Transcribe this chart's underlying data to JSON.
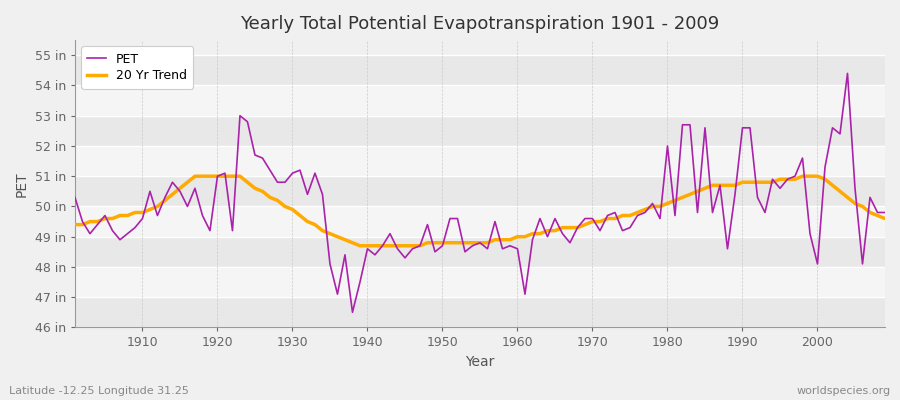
{
  "title": "Yearly Total Potential Evapotranspiration 1901 - 2009",
  "xlabel": "Year",
  "ylabel": "PET",
  "bg_color": "#f0f0f0",
  "plot_bg_color": "#f0f0f0",
  "grid_color": "#ffffff",
  "pet_color": "#aa22aa",
  "trend_color": "#ffaa00",
  "ylim": [
    46,
    55.5
  ],
  "xlim": [
    1901,
    2009
  ],
  "yticks": [
    46,
    47,
    48,
    49,
    50,
    51,
    52,
    53,
    54,
    55
  ],
  "xticks": [
    1910,
    1920,
    1930,
    1940,
    1950,
    1960,
    1970,
    1980,
    1990,
    2000
  ],
  "pet_data": [
    [
      1901,
      50.3
    ],
    [
      1902,
      49.5
    ],
    [
      1903,
      49.1
    ],
    [
      1904,
      49.4
    ],
    [
      1905,
      49.7
    ],
    [
      1906,
      49.2
    ],
    [
      1907,
      48.9
    ],
    [
      1908,
      49.1
    ],
    [
      1909,
      49.3
    ],
    [
      1910,
      49.6
    ],
    [
      1911,
      50.5
    ],
    [
      1912,
      49.7
    ],
    [
      1913,
      50.3
    ],
    [
      1914,
      50.8
    ],
    [
      1915,
      50.5
    ],
    [
      1916,
      50.0
    ],
    [
      1917,
      50.6
    ],
    [
      1918,
      49.7
    ],
    [
      1919,
      49.2
    ],
    [
      1920,
      51.0
    ],
    [
      1921,
      51.1
    ],
    [
      1922,
      49.2
    ],
    [
      1923,
      53.0
    ],
    [
      1924,
      52.8
    ],
    [
      1925,
      51.7
    ],
    [
      1926,
      51.6
    ],
    [
      1927,
      51.2
    ],
    [
      1928,
      50.8
    ],
    [
      1929,
      50.8
    ],
    [
      1930,
      51.1
    ],
    [
      1931,
      51.2
    ],
    [
      1932,
      50.4
    ],
    [
      1933,
      51.1
    ],
    [
      1934,
      50.4
    ],
    [
      1935,
      48.1
    ],
    [
      1936,
      47.1
    ],
    [
      1937,
      48.4
    ],
    [
      1938,
      46.5
    ],
    [
      1939,
      47.5
    ],
    [
      1940,
      48.6
    ],
    [
      1941,
      48.4
    ],
    [
      1942,
      48.7
    ],
    [
      1943,
      49.1
    ],
    [
      1944,
      48.6
    ],
    [
      1945,
      48.3
    ],
    [
      1946,
      48.6
    ],
    [
      1947,
      48.7
    ],
    [
      1948,
      49.4
    ],
    [
      1949,
      48.5
    ],
    [
      1950,
      48.7
    ],
    [
      1951,
      49.6
    ],
    [
      1952,
      49.6
    ],
    [
      1953,
      48.5
    ],
    [
      1954,
      48.7
    ],
    [
      1955,
      48.8
    ],
    [
      1956,
      48.6
    ],
    [
      1957,
      49.5
    ],
    [
      1958,
      48.6
    ],
    [
      1959,
      48.7
    ],
    [
      1960,
      48.6
    ],
    [
      1961,
      47.1
    ],
    [
      1962,
      48.9
    ],
    [
      1963,
      49.6
    ],
    [
      1964,
      49.0
    ],
    [
      1965,
      49.6
    ],
    [
      1966,
      49.1
    ],
    [
      1967,
      48.8
    ],
    [
      1968,
      49.3
    ],
    [
      1969,
      49.6
    ],
    [
      1970,
      49.6
    ],
    [
      1971,
      49.2
    ],
    [
      1972,
      49.7
    ],
    [
      1973,
      49.8
    ],
    [
      1974,
      49.2
    ],
    [
      1975,
      49.3
    ],
    [
      1976,
      49.7
    ],
    [
      1977,
      49.8
    ],
    [
      1978,
      50.1
    ],
    [
      1979,
      49.6
    ],
    [
      1980,
      52.0
    ],
    [
      1981,
      49.7
    ],
    [
      1982,
      52.7
    ],
    [
      1983,
      52.7
    ],
    [
      1984,
      49.8
    ],
    [
      1985,
      52.6
    ],
    [
      1986,
      49.8
    ],
    [
      1987,
      50.7
    ],
    [
      1988,
      48.6
    ],
    [
      1989,
      50.4
    ],
    [
      1990,
      52.6
    ],
    [
      1991,
      52.6
    ],
    [
      1992,
      50.3
    ],
    [
      1993,
      49.8
    ],
    [
      1994,
      50.9
    ],
    [
      1995,
      50.6
    ],
    [
      1996,
      50.9
    ],
    [
      1997,
      51.0
    ],
    [
      1998,
      51.6
    ],
    [
      1999,
      49.1
    ],
    [
      2000,
      48.1
    ],
    [
      2001,
      51.3
    ],
    [
      2002,
      52.6
    ],
    [
      2003,
      52.4
    ],
    [
      2004,
      54.4
    ],
    [
      2005,
      50.6
    ],
    [
      2006,
      48.1
    ],
    [
      2007,
      50.3
    ],
    [
      2008,
      49.8
    ],
    [
      2009,
      49.8
    ]
  ],
  "trend_data": [
    [
      1901,
      49.4
    ],
    [
      1902,
      49.4
    ],
    [
      1903,
      49.5
    ],
    [
      1904,
      49.5
    ],
    [
      1905,
      49.6
    ],
    [
      1906,
      49.6
    ],
    [
      1907,
      49.7
    ],
    [
      1908,
      49.7
    ],
    [
      1909,
      49.8
    ],
    [
      1910,
      49.8
    ],
    [
      1911,
      49.9
    ],
    [
      1912,
      50.0
    ],
    [
      1913,
      50.2
    ],
    [
      1914,
      50.4
    ],
    [
      1915,
      50.6
    ],
    [
      1916,
      50.8
    ],
    [
      1917,
      51.0
    ],
    [
      1918,
      51.0
    ],
    [
      1919,
      51.0
    ],
    [
      1920,
      51.0
    ],
    [
      1921,
      51.0
    ],
    [
      1922,
      51.0
    ],
    [
      1923,
      51.0
    ],
    [
      1924,
      50.8
    ],
    [
      1925,
      50.6
    ],
    [
      1926,
      50.5
    ],
    [
      1927,
      50.3
    ],
    [
      1928,
      50.2
    ],
    [
      1929,
      50.0
    ],
    [
      1930,
      49.9
    ],
    [
      1931,
      49.7
    ],
    [
      1932,
      49.5
    ],
    [
      1933,
      49.4
    ],
    [
      1934,
      49.2
    ],
    [
      1935,
      49.1
    ],
    [
      1936,
      49.0
    ],
    [
      1937,
      48.9
    ],
    [
      1938,
      48.8
    ],
    [
      1939,
      48.7
    ],
    [
      1940,
      48.7
    ],
    [
      1941,
      48.7
    ],
    [
      1942,
      48.7
    ],
    [
      1943,
      48.7
    ],
    [
      1944,
      48.7
    ],
    [
      1945,
      48.7
    ],
    [
      1946,
      48.7
    ],
    [
      1947,
      48.7
    ],
    [
      1948,
      48.8
    ],
    [
      1949,
      48.8
    ],
    [
      1950,
      48.8
    ],
    [
      1951,
      48.8
    ],
    [
      1952,
      48.8
    ],
    [
      1953,
      48.8
    ],
    [
      1954,
      48.8
    ],
    [
      1955,
      48.8
    ],
    [
      1956,
      48.8
    ],
    [
      1957,
      48.9
    ],
    [
      1958,
      48.9
    ],
    [
      1959,
      48.9
    ],
    [
      1960,
      49.0
    ],
    [
      1961,
      49.0
    ],
    [
      1962,
      49.1
    ],
    [
      1963,
      49.1
    ],
    [
      1964,
      49.2
    ],
    [
      1965,
      49.2
    ],
    [
      1966,
      49.3
    ],
    [
      1967,
      49.3
    ],
    [
      1968,
      49.3
    ],
    [
      1969,
      49.4
    ],
    [
      1970,
      49.5
    ],
    [
      1971,
      49.5
    ],
    [
      1972,
      49.6
    ],
    [
      1973,
      49.6
    ],
    [
      1974,
      49.7
    ],
    [
      1975,
      49.7
    ],
    [
      1976,
      49.8
    ],
    [
      1977,
      49.9
    ],
    [
      1978,
      50.0
    ],
    [
      1979,
      50.0
    ],
    [
      1980,
      50.1
    ],
    [
      1981,
      50.2
    ],
    [
      1982,
      50.3
    ],
    [
      1983,
      50.4
    ],
    [
      1984,
      50.5
    ],
    [
      1985,
      50.6
    ],
    [
      1986,
      50.7
    ],
    [
      1987,
      50.7
    ],
    [
      1988,
      50.7
    ],
    [
      1989,
      50.7
    ],
    [
      1990,
      50.8
    ],
    [
      1991,
      50.8
    ],
    [
      1992,
      50.8
    ],
    [
      1993,
      50.8
    ],
    [
      1994,
      50.8
    ],
    [
      1995,
      50.9
    ],
    [
      1996,
      50.9
    ],
    [
      1997,
      50.9
    ],
    [
      1998,
      51.0
    ],
    [
      1999,
      51.0
    ],
    [
      2000,
      51.0
    ],
    [
      2001,
      50.9
    ],
    [
      2002,
      50.7
    ],
    [
      2003,
      50.5
    ],
    [
      2004,
      50.3
    ],
    [
      2005,
      50.1
    ],
    [
      2006,
      50.0
    ],
    [
      2007,
      49.8
    ],
    [
      2008,
      49.7
    ],
    [
      2009,
      49.6
    ]
  ],
  "legend_labels": [
    "PET",
    "20 Yr Trend"
  ],
  "footer_left": "Latitude -12.25 Longitude 31.25",
  "footer_right": "worldspecies.org",
  "title_fontsize": 13,
  "axis_label_fontsize": 10,
  "tick_fontsize": 9,
  "footer_fontsize": 8
}
